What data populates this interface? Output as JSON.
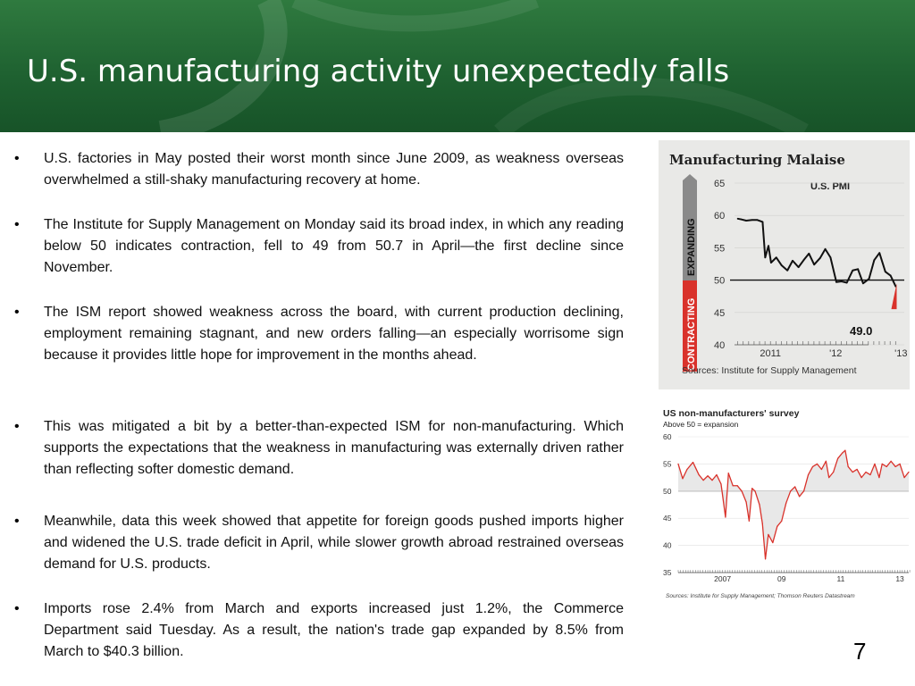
{
  "slide": {
    "title": "U.S. manufacturing activity unexpectedly falls",
    "page_number": "7",
    "colors": {
      "header_green": "#1f6231",
      "line_red": "#d9322b"
    }
  },
  "bullets": [
    {
      "marker": "•",
      "text": "U.S. factories in May posted their worst month since June 2009, as weakness overseas overwhelmed a still-shaky manufacturing recovery at home."
    },
    {
      "marker": "•",
      "text": "The Institute for Supply Management on Monday said its broad index, in which any reading below 50 indicates contraction, fell to 49 from 50.7 in April—the first decline since November."
    },
    {
      "marker": "•",
      "text": "The ISM report showed weakness across the board, with current production declining, employment remaining stagnant, and new orders falling—an especially worrisome sign because it provides little hope for improvement in the months ahead."
    },
    {
      "marker": "•",
      "text": "This was mitigated a bit by a better-than-expected ISM for non-manufacturing. Which supports the expectations that the weakness in manufacturing was externally driven rather than reflecting softer domestic demand."
    },
    {
      "marker": "•",
      "text": "Meanwhile, data  this week showed that  appetite for foreign goods pushed imports higher and widened the U.S. trade deficit in April, while slower growth abroad restrained overseas demand for U.S. products."
    },
    {
      "marker": "•",
      "text": " Imports rose 2.4% from March and exports increased just 1.2%, the Commerce Department said Tuesday. As a result, the nation's trade gap expanded by 8.5% from March to $40.3 billion."
    }
  ],
  "chart_data": [
    {
      "type": "line",
      "title": "Manufacturing Malaise",
      "subtitle": "U.S. PMI",
      "side_label_top": "EXPANDING",
      "side_label_bottom": "CONTRACTING",
      "yticks": [
        "65",
        "60",
        "55",
        "50",
        "45",
        "40"
      ],
      "ylim": [
        40,
        65
      ],
      "xticks": [
        "2011",
        "'12",
        "'13"
      ],
      "xtick_values": [
        2011.0,
        2012.0,
        2013.0
      ],
      "xlim": [
        2010.9,
        2013.5
      ],
      "reference_line": 50,
      "last_value_label": "49.0",
      "source": "Sources: Institute for Supply Management",
      "series": [
        {
          "values": [
            [
              2010.95,
              59.5
            ],
            [
              2011.0,
              59.4
            ],
            [
              2011.08,
              59.2
            ],
            [
              2011.17,
              59.3
            ],
            [
              2011.25,
              59.3
            ],
            [
              2011.33,
              59.0
            ],
            [
              2011.37,
              53.5
            ],
            [
              2011.42,
              55.3
            ],
            [
              2011.46,
              52.7
            ],
            [
              2011.54,
              53.5
            ],
            [
              2011.62,
              52.3
            ],
            [
              2011.71,
              51.5
            ],
            [
              2011.79,
              53.0
            ],
            [
              2011.88,
              52.0
            ],
            [
              2011.96,
              53.1
            ],
            [
              2012.04,
              54.1
            ],
            [
              2012.12,
              52.4
            ],
            [
              2012.21,
              53.4
            ],
            [
              2012.29,
              54.8
            ],
            [
              2012.37,
              53.5
            ],
            [
              2012.46,
              49.7
            ],
            [
              2012.54,
              49.8
            ],
            [
              2012.62,
              49.6
            ],
            [
              2012.71,
              51.5
            ],
            [
              2012.79,
              51.7
            ],
            [
              2012.87,
              49.5
            ],
            [
              2012.96,
              50.2
            ],
            [
              2013.04,
              53.1
            ],
            [
              2013.12,
              54.2
            ],
            [
              2013.21,
              51.3
            ],
            [
              2013.29,
              50.7
            ],
            [
              2013.37,
              49.0
            ]
          ]
        }
      ]
    },
    {
      "type": "line",
      "title": "US non-manufacturers' survey",
      "subtitle": "Above 50 = expansion",
      "yticks": [
        "60",
        "55",
        "50",
        "45",
        "40",
        "35"
      ],
      "ylim": [
        35,
        60
      ],
      "xticks": [
        "2007",
        "09",
        "11",
        "13"
      ],
      "xtick_values": [
        2007.5,
        2009.5,
        2011.5,
        2013.5
      ],
      "xlim": [
        2006.0,
        2013.8
      ],
      "reference_line": 50,
      "source": "Sources: Institute for Supply Management; Thomson Reuters Datastream",
      "series": [
        {
          "values": [
            [
              2006.0,
              55.0
            ],
            [
              2006.15,
              52.3
            ],
            [
              2006.3,
              54.0
            ],
            [
              2006.5,
              55.3
            ],
            [
              2006.7,
              53.0
            ],
            [
              2006.85,
              52.0
            ],
            [
              2007.0,
              52.8
            ],
            [
              2007.15,
              52.0
            ],
            [
              2007.3,
              53.0
            ],
            [
              2007.45,
              51.3
            ],
            [
              2007.6,
              45.2
            ],
            [
              2007.7,
              53.3
            ],
            [
              2007.85,
              51.0
            ],
            [
              2008.0,
              51.0
            ],
            [
              2008.15,
              50.0
            ],
            [
              2008.3,
              48.0
            ],
            [
              2008.4,
              44.5
            ],
            [
              2008.5,
              50.5
            ],
            [
              2008.6,
              50.0
            ],
            [
              2008.75,
              47.5
            ],
            [
              2008.85,
              44.0
            ],
            [
              2008.95,
              37.5
            ],
            [
              2009.05,
              42.0
            ],
            [
              2009.2,
              40.5
            ],
            [
              2009.35,
              43.5
            ],
            [
              2009.5,
              44.5
            ],
            [
              2009.65,
              47.8
            ],
            [
              2009.8,
              50.0
            ],
            [
              2009.95,
              50.8
            ],
            [
              2010.1,
              49.0
            ],
            [
              2010.25,
              50.0
            ],
            [
              2010.4,
              53.0
            ],
            [
              2010.55,
              54.5
            ],
            [
              2010.7,
              55.0
            ],
            [
              2010.85,
              54.0
            ],
            [
              2011.0,
              55.5
            ],
            [
              2011.1,
              52.5
            ],
            [
              2011.25,
              53.5
            ],
            [
              2011.4,
              56.0
            ],
            [
              2011.55,
              57.0
            ],
            [
              2011.65,
              57.5
            ],
            [
              2011.75,
              54.5
            ],
            [
              2011.9,
              53.5
            ],
            [
              2012.05,
              54.0
            ],
            [
              2012.2,
              52.5
            ],
            [
              2012.35,
              53.5
            ],
            [
              2012.5,
              53.0
            ],
            [
              2012.65,
              55.0
            ],
            [
              2012.8,
              52.5
            ],
            [
              2012.9,
              55.0
            ],
            [
              2013.05,
              54.5
            ],
            [
              2013.2,
              55.5
            ],
            [
              2013.35,
              54.5
            ],
            [
              2013.5,
              55.0
            ],
            [
              2013.65,
              52.5
            ],
            [
              2013.8,
              53.5
            ]
          ]
        }
      ]
    }
  ]
}
